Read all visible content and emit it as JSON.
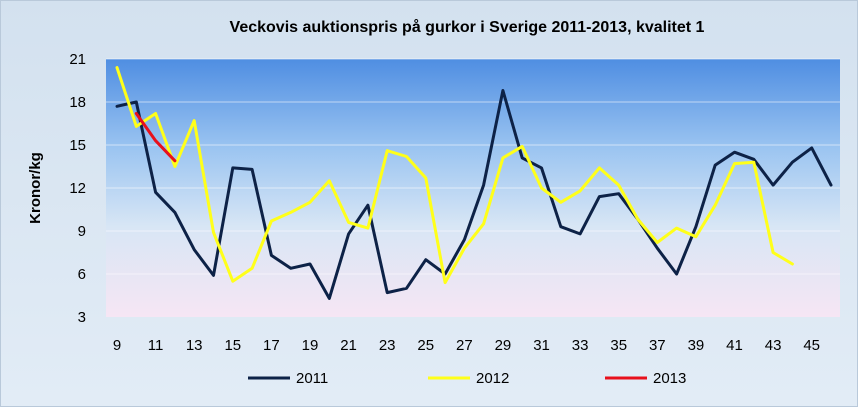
{
  "chart_data": {
    "type": "line",
    "title": "Veckovis auktionspris på  gurkor i Sverige 2011-2013, kvalitet 1",
    "xlabel": "",
    "ylabel": "Kronor/kg",
    "ylim": [
      3,
      21
    ],
    "yticks": [
      3,
      6,
      9,
      12,
      15,
      18,
      21
    ],
    "xlim": [
      9,
      46
    ],
    "xticks": [
      9,
      11,
      13,
      15,
      17,
      19,
      21,
      23,
      25,
      27,
      29,
      31,
      33,
      35,
      37,
      39,
      41,
      43,
      45
    ],
    "grid": true,
    "legend": "bottom",
    "series": [
      {
        "name": "2011",
        "color": "#0d2247",
        "x": [
          9,
          10,
          11,
          12,
          13,
          14,
          15,
          16,
          17,
          18,
          19,
          20,
          21,
          22,
          23,
          24,
          25,
          26,
          27,
          28,
          29,
          30,
          31,
          32,
          33,
          34,
          35,
          36,
          37,
          38,
          39,
          40,
          41,
          42,
          43,
          44,
          45,
          46
        ],
        "values": [
          17.7,
          18.0,
          11.7,
          10.3,
          7.7,
          5.9,
          13.4,
          13.3,
          7.3,
          6.4,
          6.7,
          4.3,
          8.8,
          10.8,
          4.7,
          5.0,
          7.0,
          6.0,
          8.4,
          12.2,
          18.8,
          14.1,
          13.4,
          9.3,
          8.8,
          11.4,
          11.6,
          9.8,
          7.8,
          6.0,
          9.3,
          13.6,
          14.5,
          14.0,
          12.2,
          13.8,
          14.8,
          12.2
        ]
      },
      {
        "name": "2012",
        "color": "#ffff1a",
        "x": [
          9,
          10,
          11,
          12,
          13,
          14,
          15,
          16,
          17,
          18,
          19,
          20,
          21,
          22,
          23,
          24,
          25,
          26,
          27,
          28,
          29,
          30,
          31,
          32,
          33,
          34,
          35,
          36,
          37,
          38,
          39,
          40,
          41,
          42,
          43,
          44
        ],
        "values": [
          20.4,
          16.3,
          17.2,
          13.5,
          16.7,
          8.9,
          5.5,
          6.4,
          9.7,
          10.3,
          11.0,
          12.5,
          9.6,
          9.2,
          14.6,
          14.2,
          12.7,
          5.4,
          7.8,
          9.5,
          14.1,
          14.9,
          12.0,
          11.0,
          11.8,
          13.4,
          12.2,
          9.8,
          8.2,
          9.2,
          8.6,
          10.8,
          13.7,
          13.8,
          7.5,
          6.7
        ]
      },
      {
        "name": "2013",
        "color": "#e8101c",
        "x": [
          10,
          11,
          12
        ],
        "values": [
          17.2,
          15.3,
          13.9
        ]
      }
    ]
  }
}
